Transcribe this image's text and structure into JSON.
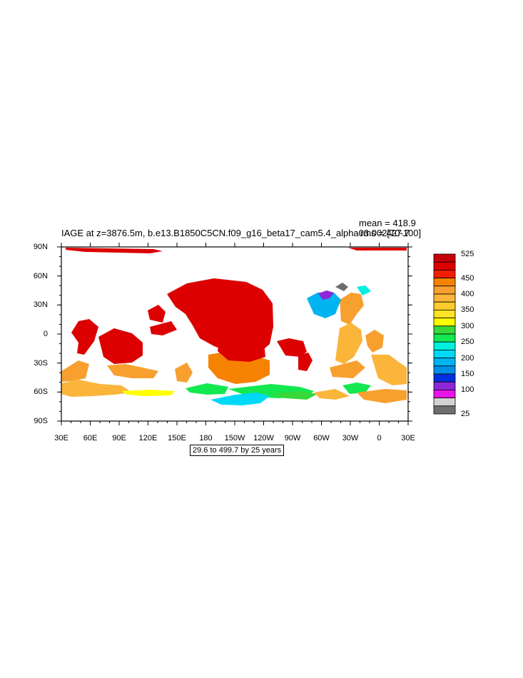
{
  "plot": {
    "title": "IAGE at z=3876.5m, b.e13.B1850C5CN.f09_g16_beta17_cam5.4_alpha03.002[70-100]",
    "mean_text": "mean = 418.9",
    "rms_text": "rms = 427.7",
    "subtitle": "29.6 to 499.7 by 25 years"
  },
  "chart_data": {
    "type": "heatmap",
    "variable": "IAGE",
    "depth": "z=3876.5m",
    "xticks": [
      "30E",
      "60E",
      "90E",
      "120E",
      "150E",
      "180",
      "150W",
      "120W",
      "90W",
      "60W",
      "30W",
      "0",
      "30E"
    ],
    "yticks": [
      "90N",
      "60N",
      "30N",
      "0",
      "30S",
      "60S",
      "90S"
    ],
    "colorbar": {
      "labels": [
        "525",
        "450",
        "400",
        "350",
        "300",
        "250",
        "200",
        "150",
        "100",
        "25"
      ],
      "colors_top_to_bottom": [
        "#c8000a",
        "#dc0000",
        "#f01e00",
        "#f58200",
        "#f7a030",
        "#fab53a",
        "#fccc2c",
        "#ffe324",
        "#ffff00",
        "#38d838",
        "#14e850",
        "#00f0e0",
        "#00d8f8",
        "#00b4f0",
        "#0090e8",
        "#0030e0",
        "#8c28d8",
        "#e614e6",
        "#d2d2d2",
        "#6e6e6e"
      ]
    },
    "grid": "off"
  }
}
